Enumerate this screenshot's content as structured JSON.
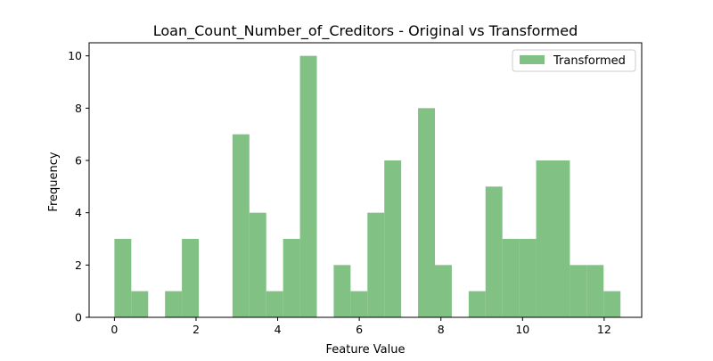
{
  "chart_data": {
    "type": "bar",
    "title": "Loan_Count_Number_of_Creditors - Original vs Transformed",
    "xlabel": "Feature Value",
    "ylabel": "Frequency",
    "xlim": [
      -0.62,
      12.92
    ],
    "ylim": [
      0,
      10.5
    ],
    "xticks": [
      0,
      2,
      4,
      6,
      8,
      10,
      12
    ],
    "yticks": [
      0,
      2,
      4,
      6,
      8,
      10
    ],
    "legend": {
      "placement": "top-right",
      "entries": [
        "Transformed"
      ]
    },
    "grid": false,
    "bin_width": 0.4133,
    "series": [
      {
        "name": "Transformed",
        "color": "#81c184",
        "bins": [
          {
            "x0": 0.0,
            "count": 3
          },
          {
            "x0": 0.4133,
            "count": 1
          },
          {
            "x0": 0.8267,
            "count": 0
          },
          {
            "x0": 1.24,
            "count": 1
          },
          {
            "x0": 1.6533,
            "count": 3
          },
          {
            "x0": 2.0667,
            "count": 0
          },
          {
            "x0": 2.48,
            "count": 0
          },
          {
            "x0": 2.8933,
            "count": 7
          },
          {
            "x0": 3.3067,
            "count": 4
          },
          {
            "x0": 3.72,
            "count": 1
          },
          {
            "x0": 4.1333,
            "count": 3
          },
          {
            "x0": 4.5467,
            "count": 10
          },
          {
            "x0": 4.96,
            "count": 0
          },
          {
            "x0": 5.3733,
            "count": 2
          },
          {
            "x0": 5.7867,
            "count": 1
          },
          {
            "x0": 6.2,
            "count": 4
          },
          {
            "x0": 6.6133,
            "count": 6
          },
          {
            "x0": 7.0267,
            "count": 0
          },
          {
            "x0": 7.44,
            "count": 8
          },
          {
            "x0": 7.8533,
            "count": 2
          },
          {
            "x0": 8.2667,
            "count": 0
          },
          {
            "x0": 8.68,
            "count": 1
          },
          {
            "x0": 9.0933,
            "count": 5
          },
          {
            "x0": 9.5067,
            "count": 3
          },
          {
            "x0": 9.92,
            "count": 3
          },
          {
            "x0": 10.3333,
            "count": 6
          },
          {
            "x0": 10.7467,
            "count": 6
          },
          {
            "x0": 11.16,
            "count": 2
          },
          {
            "x0": 11.5733,
            "count": 2
          },
          {
            "x0": 11.9867,
            "count": 1
          }
        ]
      }
    ]
  }
}
